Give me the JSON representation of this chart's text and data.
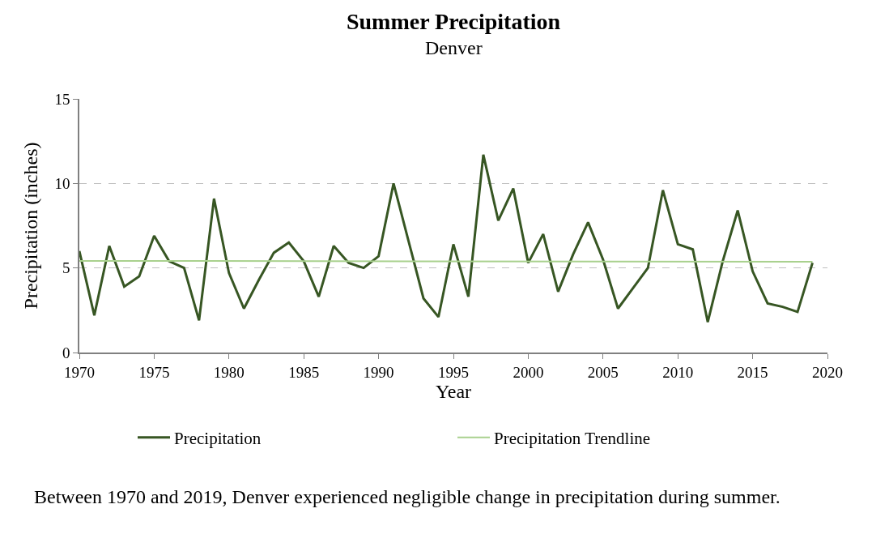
{
  "chart_data": {
    "type": "line",
    "title": "Summer Precipitation",
    "subtitle": "Denver",
    "xlabel": "Year",
    "ylabel": "Precipitation (inches)",
    "x": [
      1970,
      1971,
      1972,
      1973,
      1974,
      1975,
      1976,
      1977,
      1978,
      1979,
      1980,
      1981,
      1982,
      1983,
      1984,
      1985,
      1986,
      1987,
      1988,
      1989,
      1990,
      1991,
      1992,
      1993,
      1994,
      1995,
      1996,
      1997,
      1998,
      1999,
      2000,
      2001,
      2002,
      2003,
      2004,
      2005,
      2006,
      2007,
      2008,
      2009,
      2010,
      2011,
      2012,
      2013,
      2014,
      2015,
      2016,
      2017,
      2018,
      2019
    ],
    "series": [
      {
        "name": "Precipitation",
        "color": "#375623",
        "values": [
          6.0,
          2.2,
          6.3,
          3.9,
          4.5,
          6.9,
          5.4,
          5.0,
          1.9,
          9.1,
          4.7,
          2.6,
          4.3,
          5.9,
          6.5,
          5.4,
          3.3,
          6.3,
          5.3,
          5.0,
          5.7,
          10.0,
          6.6,
          3.2,
          2.1,
          6.4,
          3.3,
          11.7,
          7.8,
          9.7,
          5.3,
          7.0,
          3.6,
          5.8,
          7.7,
          5.5,
          2.6,
          3.8,
          5.0,
          9.6,
          6.4,
          6.1,
          1.8,
          5.4,
          8.4,
          4.8,
          2.9,
          2.7,
          2.4,
          5.3
        ]
      },
      {
        "name": "Precipitation Trendline",
        "color": "#a9d18e",
        "x": [
          1970,
          2019
        ],
        "values": [
          5.42,
          5.37
        ]
      }
    ],
    "xlim": [
      1970,
      2020
    ],
    "xticks": [
      1970,
      1975,
      1980,
      1985,
      1990,
      1995,
      2000,
      2005,
      2010,
      2015,
      2020
    ],
    "ylim": [
      0,
      15
    ],
    "yticks": [
      0,
      5,
      10,
      15
    ],
    "grid": "y",
    "legend": "bottom",
    "marker": "none",
    "line_style": "solid",
    "annotations": [
      "Between 1970 and 2019, Denver experienced negligible change in precipitation during summer."
    ]
  }
}
